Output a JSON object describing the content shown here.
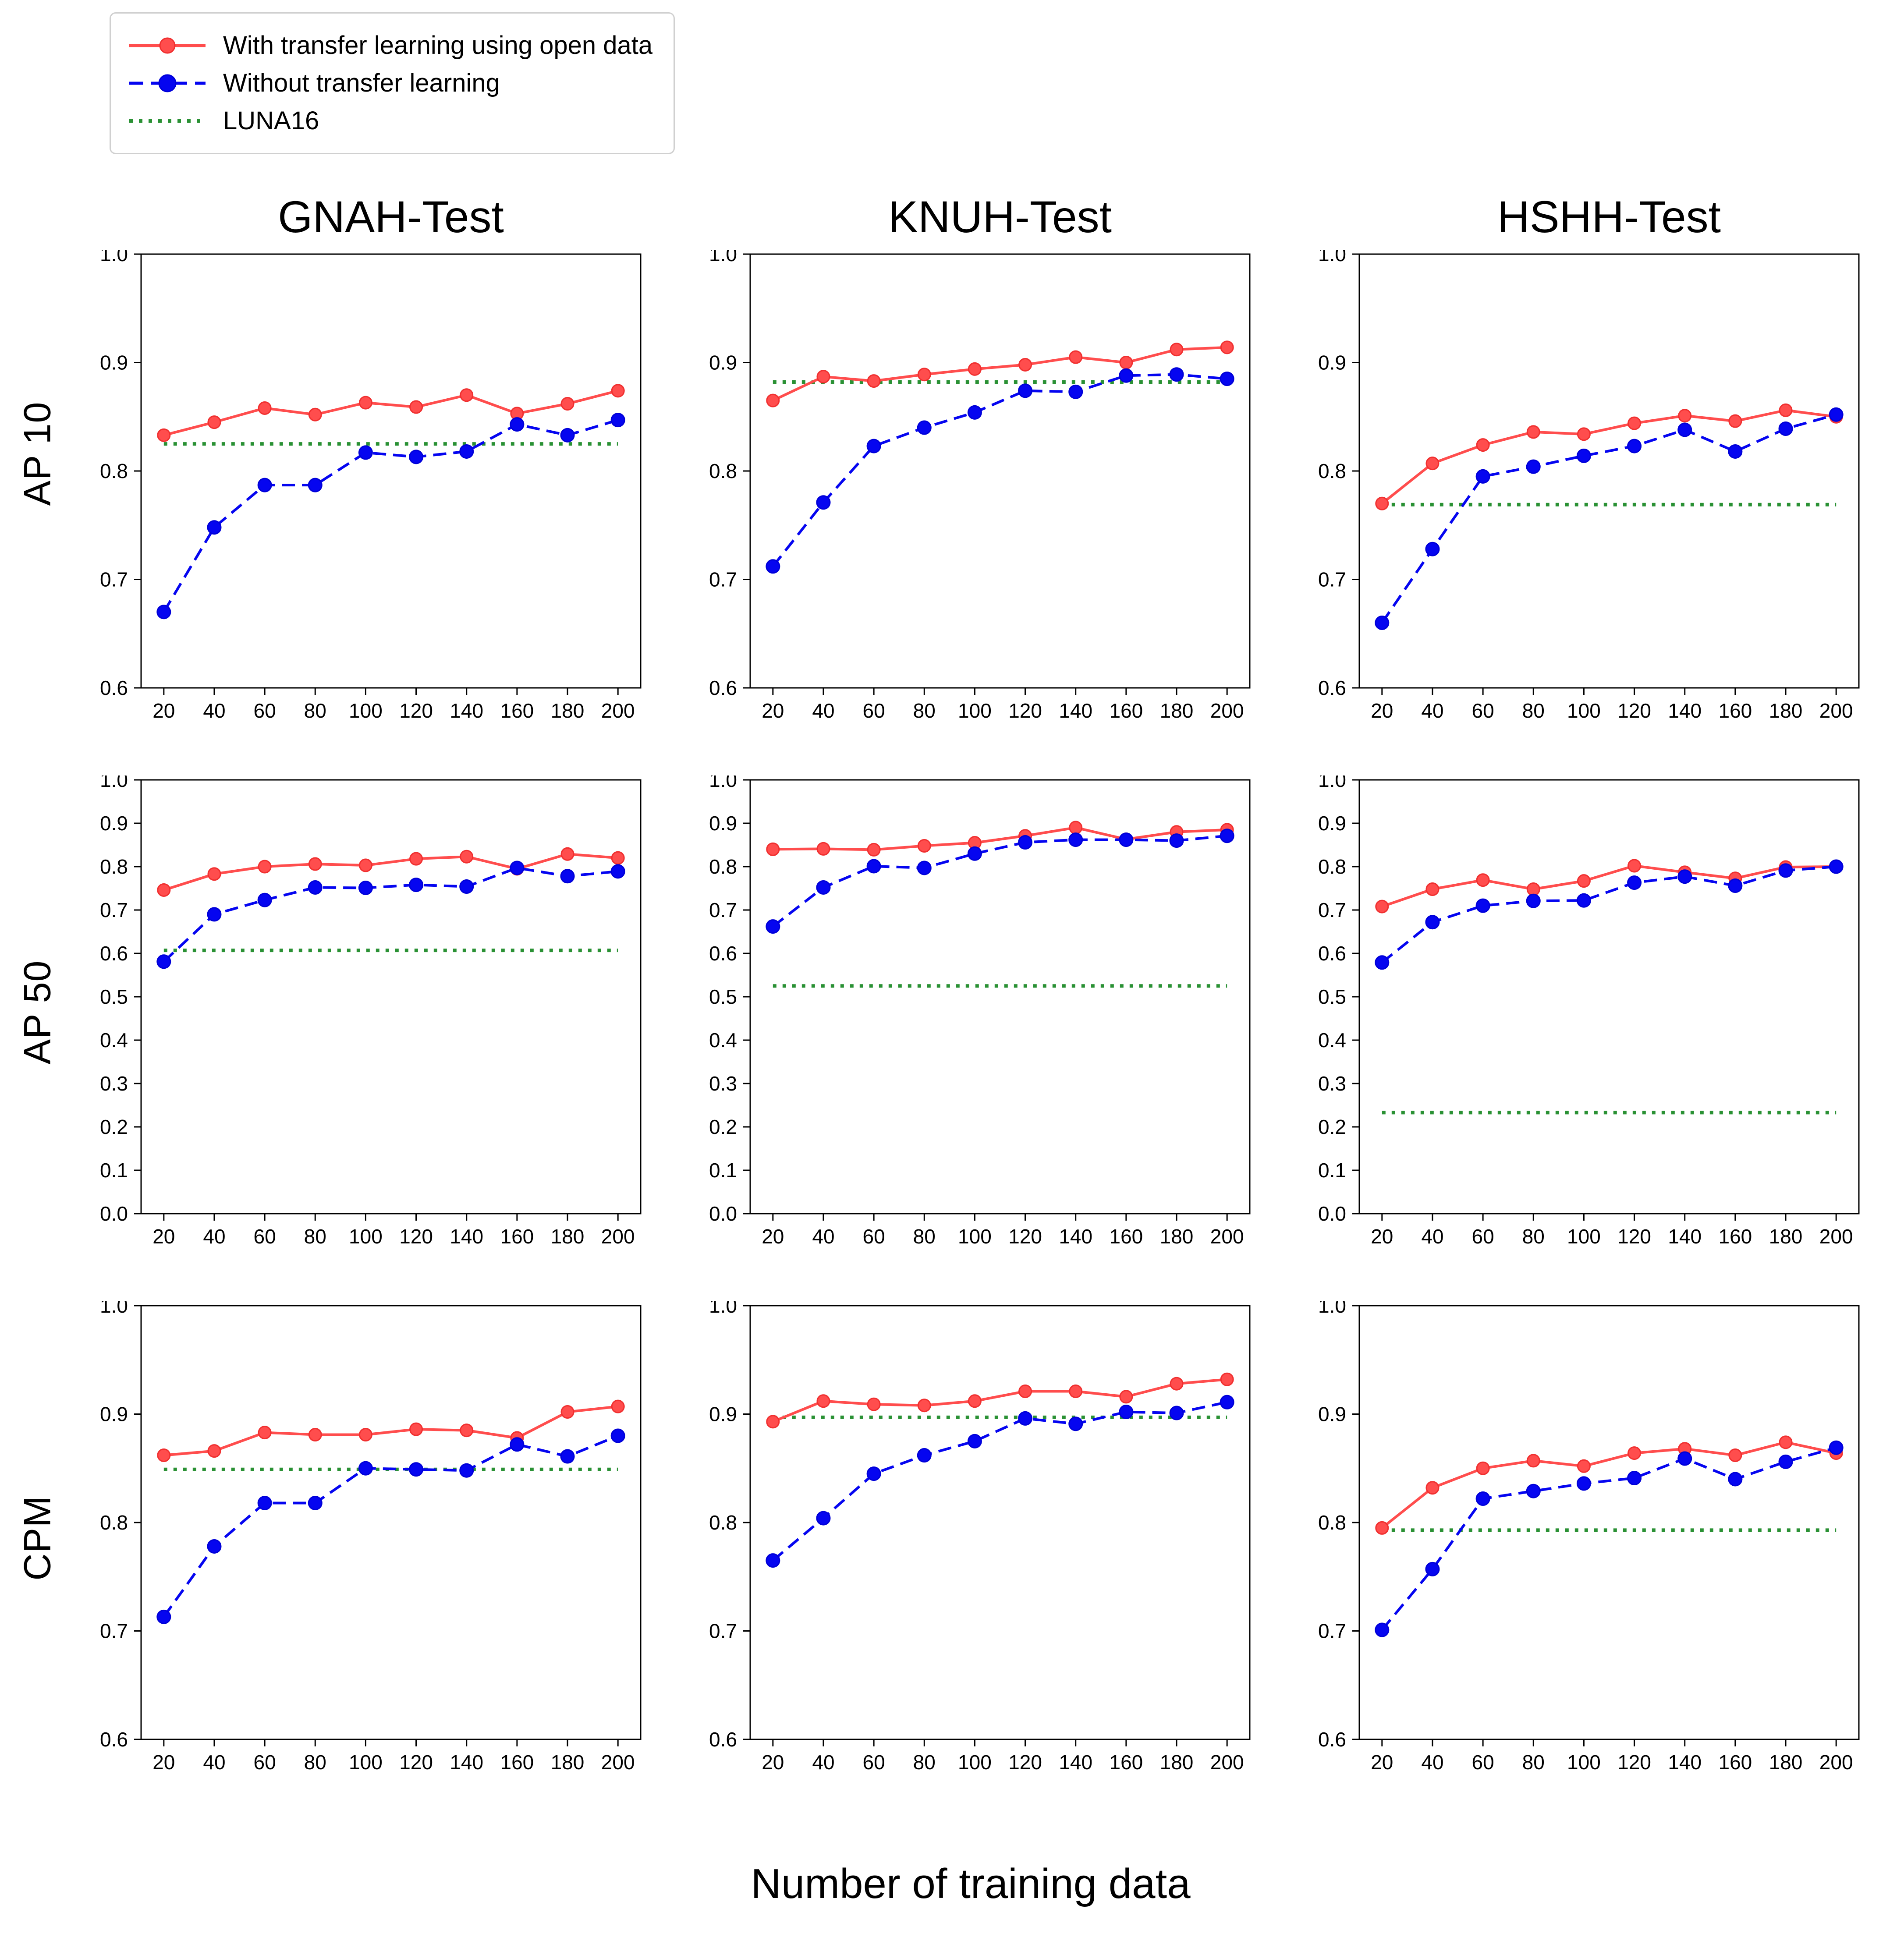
{
  "legend": {
    "items": [
      {
        "label": "With transfer learning using open data",
        "series": "with_tl",
        "style": "solid-marker"
      },
      {
        "label": "Without transfer learning",
        "series": "without_tl",
        "style": "dashed-marker"
      },
      {
        "label": "LUNA16",
        "series": "luna16",
        "style": "dotted"
      }
    ]
  },
  "colors": {
    "with_tl": "#ff4d4d",
    "with_tl_edge": "#f03030",
    "without_tl": "#0505f0",
    "without_tl_edge": "#0000d8",
    "luna16": "#2a9134",
    "axis": "#000000"
  },
  "row_labels": [
    "AP 10",
    "AP 50",
    "CPM"
  ],
  "col_titles": [
    "GNAH-Test",
    "KNUH-Test",
    "HSHH-Test"
  ],
  "xlabel": "Number of training data",
  "chart_data": [
    {
      "type": "line",
      "title": "GNAH-Test",
      "row": "AP 10",
      "x": [
        20,
        40,
        60,
        80,
        100,
        120,
        140,
        160,
        180,
        200
      ],
      "ylim": [
        0.6,
        1.0
      ],
      "yticks": [
        0.6,
        0.7,
        0.8,
        0.9,
        1.0
      ],
      "grid": false,
      "series": [
        {
          "name": "With transfer learning using open data",
          "values": [
            0.833,
            0.845,
            0.858,
            0.852,
            0.863,
            0.859,
            0.87,
            0.853,
            0.862,
            0.874
          ]
        },
        {
          "name": "Without transfer learning",
          "values": [
            0.67,
            0.748,
            0.787,
            0.787,
            0.817,
            0.813,
            0.818,
            0.843,
            0.833,
            0.847
          ]
        },
        {
          "name": "LUNA16",
          "value": 0.825
        }
      ]
    },
    {
      "type": "line",
      "title": "KNUH-Test",
      "row": "AP 10",
      "x": [
        20,
        40,
        60,
        80,
        100,
        120,
        140,
        160,
        180,
        200
      ],
      "ylim": [
        0.6,
        1.0
      ],
      "yticks": [
        0.6,
        0.7,
        0.8,
        0.9,
        1.0
      ],
      "grid": false,
      "series": [
        {
          "name": "With transfer learning using open data",
          "values": [
            0.865,
            0.887,
            0.883,
            0.889,
            0.894,
            0.898,
            0.905,
            0.9,
            0.912,
            0.914
          ]
        },
        {
          "name": "Without transfer learning",
          "values": [
            0.712,
            0.771,
            0.823,
            0.84,
            0.854,
            0.874,
            0.873,
            0.888,
            0.889,
            0.885
          ]
        },
        {
          "name": "LUNA16",
          "value": 0.882
        }
      ]
    },
    {
      "type": "line",
      "title": "HSHH-Test",
      "row": "AP 10",
      "x": [
        20,
        40,
        60,
        80,
        100,
        120,
        140,
        160,
        180,
        200
      ],
      "ylim": [
        0.6,
        1.0
      ],
      "yticks": [
        0.6,
        0.7,
        0.8,
        0.9,
        1.0
      ],
      "grid": false,
      "series": [
        {
          "name": "With transfer learning using open data",
          "values": [
            0.77,
            0.807,
            0.824,
            0.836,
            0.834,
            0.844,
            0.851,
            0.846,
            0.856,
            0.85
          ]
        },
        {
          "name": "Without transfer learning",
          "values": [
            0.66,
            0.728,
            0.795,
            0.804,
            0.814,
            0.823,
            0.838,
            0.818,
            0.839,
            0.852
          ]
        },
        {
          "name": "LUNA16",
          "value": 0.769
        }
      ]
    },
    {
      "type": "line",
      "title": "GNAH-Test",
      "row": "AP 50",
      "x": [
        20,
        40,
        60,
        80,
        100,
        120,
        140,
        160,
        180,
        200
      ],
      "ylim": [
        0.0,
        1.0
      ],
      "yticks": [
        0.0,
        0.1,
        0.2,
        0.3,
        0.4,
        0.5,
        0.6,
        0.7,
        0.8,
        0.9,
        1.0
      ],
      "grid": false,
      "series": [
        {
          "name": "With transfer learning using open data",
          "values": [
            0.746,
            0.783,
            0.8,
            0.806,
            0.803,
            0.818,
            0.823,
            0.795,
            0.829,
            0.82
          ]
        },
        {
          "name": "Without transfer learning",
          "values": [
            0.581,
            0.69,
            0.723,
            0.752,
            0.751,
            0.758,
            0.754,
            0.797,
            0.778,
            0.789
          ]
        },
        {
          "name": "LUNA16",
          "value": 0.607
        }
      ]
    },
    {
      "type": "line",
      "title": "KNUH-Test",
      "row": "AP 50",
      "x": [
        20,
        40,
        60,
        80,
        100,
        120,
        140,
        160,
        180,
        200
      ],
      "ylim": [
        0.0,
        1.0
      ],
      "yticks": [
        0.0,
        0.1,
        0.2,
        0.3,
        0.4,
        0.5,
        0.6,
        0.7,
        0.8,
        0.9,
        1.0
      ],
      "grid": false,
      "series": [
        {
          "name": "With transfer learning using open data",
          "values": [
            0.84,
            0.841,
            0.839,
            0.848,
            0.855,
            0.871,
            0.89,
            0.863,
            0.88,
            0.885
          ]
        },
        {
          "name": "Without transfer learning",
          "values": [
            0.662,
            0.752,
            0.801,
            0.797,
            0.83,
            0.856,
            0.862,
            0.862,
            0.86,
            0.871
          ]
        },
        {
          "name": "LUNA16",
          "value": 0.525
        }
      ]
    },
    {
      "type": "line",
      "title": "HSHH-Test",
      "row": "AP 50",
      "x": [
        20,
        40,
        60,
        80,
        100,
        120,
        140,
        160,
        180,
        200
      ],
      "ylim": [
        0.0,
        1.0
      ],
      "yticks": [
        0.0,
        0.1,
        0.2,
        0.3,
        0.4,
        0.5,
        0.6,
        0.7,
        0.8,
        0.9,
        1.0
      ],
      "grid": false,
      "series": [
        {
          "name": "With transfer learning using open data",
          "values": [
            0.708,
            0.748,
            0.769,
            0.748,
            0.767,
            0.802,
            0.787,
            0.773,
            0.799,
            0.8
          ]
        },
        {
          "name": "Without transfer learning",
          "values": [
            0.579,
            0.672,
            0.71,
            0.721,
            0.722,
            0.763,
            0.777,
            0.756,
            0.791,
            0.8
          ]
        },
        {
          "name": "LUNA16",
          "value": 0.233
        }
      ]
    },
    {
      "type": "line",
      "title": "GNAH-Test",
      "row": "CPM",
      "x": [
        20,
        40,
        60,
        80,
        100,
        120,
        140,
        160,
        180,
        200
      ],
      "ylim": [
        0.6,
        1.0
      ],
      "yticks": [
        0.6,
        0.7,
        0.8,
        0.9,
        1.0
      ],
      "grid": false,
      "series": [
        {
          "name": "With transfer learning using open data",
          "values": [
            0.862,
            0.866,
            0.883,
            0.881,
            0.881,
            0.886,
            0.885,
            0.878,
            0.902,
            0.907
          ]
        },
        {
          "name": "Without transfer learning",
          "values": [
            0.713,
            0.778,
            0.818,
            0.818,
            0.85,
            0.849,
            0.848,
            0.872,
            0.861,
            0.88
          ]
        },
        {
          "name": "LUNA16",
          "value": 0.849
        }
      ]
    },
    {
      "type": "line",
      "title": "KNUH-Test",
      "row": "CPM",
      "x": [
        20,
        40,
        60,
        80,
        100,
        120,
        140,
        160,
        180,
        200
      ],
      "ylim": [
        0.6,
        1.0
      ],
      "yticks": [
        0.6,
        0.7,
        0.8,
        0.9,
        1.0
      ],
      "grid": false,
      "series": [
        {
          "name": "With transfer learning using open data",
          "values": [
            0.893,
            0.912,
            0.909,
            0.908,
            0.912,
            0.921,
            0.921,
            0.916,
            0.928,
            0.932
          ]
        },
        {
          "name": "Without transfer learning",
          "values": [
            0.765,
            0.804,
            0.845,
            0.862,
            0.875,
            0.896,
            0.891,
            0.902,
            0.901,
            0.911
          ]
        },
        {
          "name": "LUNA16",
          "value": 0.897
        }
      ]
    },
    {
      "type": "line",
      "title": "HSHH-Test",
      "row": "CPM",
      "x": [
        20,
        40,
        60,
        80,
        100,
        120,
        140,
        160,
        180,
        200
      ],
      "ylim": [
        0.6,
        1.0
      ],
      "yticks": [
        0.6,
        0.7,
        0.8,
        0.9,
        1.0
      ],
      "grid": false,
      "series": [
        {
          "name": "With transfer learning using open data",
          "values": [
            0.795,
            0.832,
            0.85,
            0.857,
            0.852,
            0.864,
            0.868,
            0.862,
            0.874,
            0.864
          ]
        },
        {
          "name": "Without transfer learning",
          "values": [
            0.701,
            0.757,
            0.822,
            0.829,
            0.836,
            0.841,
            0.859,
            0.84,
            0.856,
            0.869
          ]
        },
        {
          "name": "LUNA16",
          "value": 0.793
        }
      ]
    }
  ]
}
